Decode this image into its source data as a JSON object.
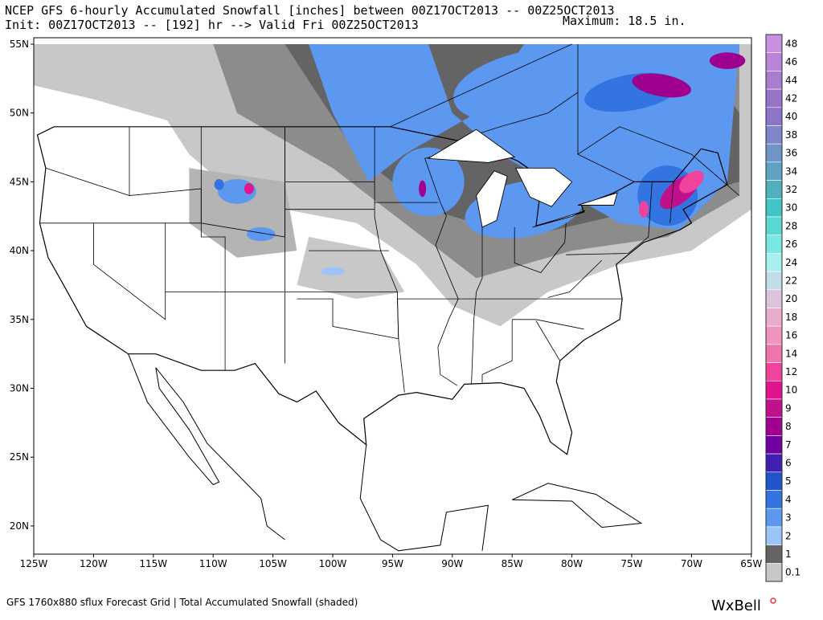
{
  "header": {
    "line1": "NCEP GFS 6-hourly Accumulated Snowfall [inches] between 00Z17OCT2013 -- 00Z25OCT2013",
    "line2": "Init: 00Z17OCT2013 -- [192] hr --> Valid Fri 00Z25OCT2013",
    "maximum": "Maximum:  18.5 in."
  },
  "latitude_labels": [
    "55N",
    "50N",
    "45N",
    "40N",
    "35N",
    "30N",
    "25N",
    "20N"
  ],
  "longitude_labels": [
    "125W",
    "120W",
    "115W",
    "110W",
    "105W",
    "100W",
    "95W",
    "90W",
    "85W",
    "80W",
    "75W",
    "70W",
    "65W"
  ],
  "colorbar": [
    {
      "value": 48,
      "color": "#c890e0"
    },
    {
      "value": 46,
      "color": "#b884d8"
    },
    {
      "value": 44,
      "color": "#a87cd0"
    },
    {
      "value": 42,
      "color": "#9874c8"
    },
    {
      "value": 40,
      "color": "#8c74c8"
    },
    {
      "value": 38,
      "color": "#8084c8"
    },
    {
      "value": 36,
      "color": "#7094c8"
    },
    {
      "value": 34,
      "color": "#60a0c0"
    },
    {
      "value": 32,
      "color": "#50b0c0"
    },
    {
      "value": 30,
      "color": "#40c4c4"
    },
    {
      "value": 28,
      "color": "#58d8d0"
    },
    {
      "value": 26,
      "color": "#78e8e0"
    },
    {
      "value": 24,
      "color": "#a8f0f0"
    },
    {
      "value": 22,
      "color": "#c4dce8"
    },
    {
      "value": 20,
      "color": "#dcc4dc"
    },
    {
      "value": 18,
      "color": "#eaaccc"
    },
    {
      "value": 16,
      "color": "#f094bc"
    },
    {
      "value": 14,
      "color": "#f074ac"
    },
    {
      "value": 12,
      "color": "#f0449c"
    },
    {
      "value": 10,
      "color": "#e0148c"
    },
    {
      "value": 9,
      "color": "#c0108c"
    },
    {
      "value": 8,
      "color": "#a00090"
    },
    {
      "value": 7,
      "color": "#7000a0"
    },
    {
      "value": 6,
      "color": "#4020b0"
    },
    {
      "value": 5,
      "color": "#2054c8"
    },
    {
      "value": 4,
      "color": "#3474e0"
    },
    {
      "value": 3,
      "color": "#5c98f0"
    },
    {
      "value": 2,
      "color": "#9cc4f8"
    },
    {
      "value": 1,
      "color": "#646464"
    },
    {
      "value": 0.1,
      "color": "#c8c8c8"
    }
  ],
  "footer": "GFS 1760x880 sflux Forecast Grid | Total Accumulated Snowfall (shaded)",
  "logo": "WxBell"
}
